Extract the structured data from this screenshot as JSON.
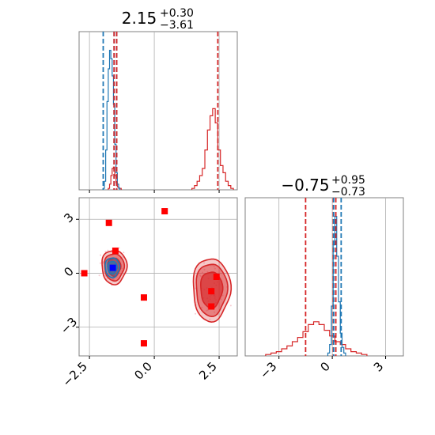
{
  "chart_data": {
    "type": "corner",
    "parameters": [
      {
        "title_main": "2.15",
        "title_plus": "+0.30",
        "title_minus": "−3.61"
      },
      {
        "title_main": "−0.75",
        "title_plus": "+0.95",
        "title_minus": "−0.73"
      }
    ],
    "colors": {
      "blue": "#1f77b4",
      "red": "#d62728",
      "marker": "#ff0000",
      "marker_blue": "#0000ff"
    },
    "x1_range": [
      -2.9,
      3.2
    ],
    "x2_range": [
      -4.9,
      4.0
    ],
    "x1_ticks": [
      {
        "value": -2.5,
        "label": "−2.5"
      },
      {
        "value": 0.0,
        "label": "0.0"
      },
      {
        "value": 2.5,
        "label": "2.5"
      }
    ],
    "x2_ticks": [
      {
        "value": -3,
        "label": "−3"
      },
      {
        "value": 0,
        "label": "0"
      },
      {
        "value": 3,
        "label": "3"
      }
    ],
    "y2_ticks": [
      {
        "value": 3,
        "label": "3"
      },
      {
        "value": 0,
        "label": "0"
      },
      {
        "value": -3,
        "label": "−3"
      }
    ],
    "hist_x1": {
      "blue": [
        [
          -1.95,
          0.01
        ],
        [
          -1.9,
          0.06
        ],
        [
          -1.85,
          0.28
        ],
        [
          -1.8,
          0.62
        ],
        [
          -1.75,
          0.85
        ],
        [
          -1.7,
          0.98
        ],
        [
          -1.65,
          0.92
        ],
        [
          -1.6,
          0.8
        ],
        [
          -1.55,
          0.6
        ],
        [
          -1.5,
          0.32
        ],
        [
          -1.45,
          0.12
        ],
        [
          -1.4,
          0.04
        ],
        [
          -1.35,
          0.01
        ]
      ],
      "red": [
        [
          -1.75,
          0.01
        ],
        [
          -1.7,
          0.04
        ],
        [
          -1.65,
          0.1
        ],
        [
          -1.6,
          0.15
        ],
        [
          -1.55,
          0.16
        ],
        [
          -1.5,
          0.1
        ],
        [
          -1.45,
          0.05
        ],
        [
          -1.4,
          0.02
        ],
        [
          -1.3,
          0.01
        ],
        [
          1.5,
          0.01
        ],
        [
          1.6,
          0.03
        ],
        [
          1.7,
          0.06
        ],
        [
          1.8,
          0.1
        ],
        [
          1.9,
          0.15
        ],
        [
          2.0,
          0.28
        ],
        [
          2.1,
          0.42
        ],
        [
          2.2,
          0.52
        ],
        [
          2.3,
          0.57
        ],
        [
          2.4,
          0.47
        ],
        [
          2.5,
          0.28
        ],
        [
          2.6,
          0.17
        ],
        [
          2.7,
          0.12
        ],
        [
          2.8,
          0.06
        ],
        [
          2.9,
          0.03
        ],
        [
          3.0,
          0.01
        ]
      ],
      "blue_lines": [
        -1.97,
        -1.55,
        -1.45
      ],
      "red_lines": [
        -1.55,
        -1.45,
        2.45
      ]
    },
    "hist_x2": {
      "blue": [
        [
          -0.2,
          0.02
        ],
        [
          -0.1,
          0.08
        ],
        [
          0.0,
          0.35
        ],
        [
          0.1,
          0.78
        ],
        [
          0.2,
          0.98
        ],
        [
          0.3,
          0.7
        ],
        [
          0.4,
          0.38
        ],
        [
          0.5,
          0.16
        ],
        [
          0.6,
          0.06
        ],
        [
          0.7,
          0.02
        ]
      ],
      "red": [
        [
          -3.6,
          0.01
        ],
        [
          -3.3,
          0.02
        ],
        [
          -3.0,
          0.03
        ],
        [
          -2.7,
          0.05
        ],
        [
          -2.4,
          0.07
        ],
        [
          -2.1,
          0.1
        ],
        [
          -1.8,
          0.13
        ],
        [
          -1.5,
          0.17
        ],
        [
          -1.2,
          0.22
        ],
        [
          -0.9,
          0.24
        ],
        [
          -0.6,
          0.22
        ],
        [
          -0.3,
          0.18
        ],
        [
          0.0,
          0.14
        ],
        [
          0.3,
          0.1
        ],
        [
          0.6,
          0.08
        ],
        [
          0.9,
          0.05
        ],
        [
          1.2,
          0.03
        ],
        [
          1.5,
          0.02
        ],
        [
          1.8,
          0.01
        ]
      ],
      "blue_lines": [
        0.08,
        0.5
      ],
      "red_lines": [
        -1.5,
        0.06,
        0.2
      ]
    },
    "contours": [
      {
        "color": "red",
        "center": [
          -1.55,
          0.35
        ],
        "radii": [
          [
            0.48,
            0.95
          ],
          [
            0.38,
            0.75
          ],
          [
            0.25,
            0.5
          ]
        ]
      },
      {
        "color": "red",
        "center": [
          2.2,
          -0.9
        ],
        "radii": [
          [
            0.72,
            1.75
          ],
          [
            0.6,
            1.45
          ],
          [
            0.42,
            1.0
          ]
        ]
      },
      {
        "color": "blue",
        "center": [
          -1.62,
          0.32
        ],
        "radii": [
          [
            0.28,
            0.55
          ],
          [
            0.18,
            0.35
          ]
        ]
      }
    ],
    "markers_red": [
      [
        -2.7,
        0.0
      ],
      [
        -1.75,
        2.8
      ],
      [
        -1.5,
        1.25
      ],
      [
        -0.4,
        -1.35
      ],
      [
        -0.4,
        -3.9
      ],
      [
        0.4,
        3.45
      ],
      [
        2.2,
        -1.0
      ],
      [
        2.2,
        -1.85
      ],
      [
        2.4,
        -0.2
      ]
    ],
    "markers_blue": [
      [
        -1.6,
        0.3
      ]
    ]
  }
}
